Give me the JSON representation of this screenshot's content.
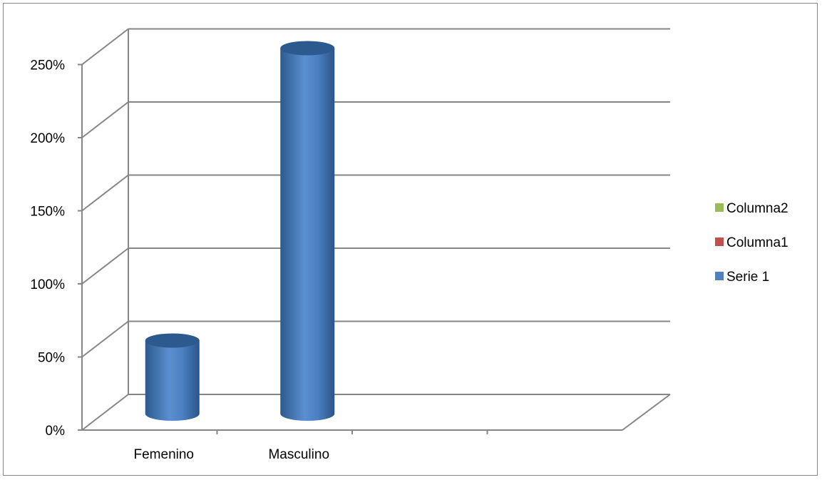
{
  "chart_data": {
    "type": "bar",
    "style": "3d-cylinder",
    "categories": [
      "Femenino",
      "Masculino",
      "",
      ""
    ],
    "series": [
      {
        "name": "Serie 1",
        "values": [
          0.5,
          2.5,
          null,
          null
        ],
        "color": "#4F81BD"
      },
      {
        "name": "Columna1",
        "values": [
          null,
          null,
          null,
          null
        ],
        "color": "#C0504D"
      },
      {
        "name": "Columna2",
        "values": [
          null,
          null,
          null,
          null
        ],
        "color": "#9BBB59"
      }
    ],
    "y_ticks": [
      {
        "value": 0,
        "label": "0%"
      },
      {
        "value": 0.5,
        "label": "50%"
      },
      {
        "value": 1,
        "label": "100%"
      },
      {
        "value": 1.5,
        "label": "150%"
      },
      {
        "value": 2,
        "label": "200%"
      },
      {
        "value": 2.5,
        "label": "250%"
      }
    ],
    "ylim": [
      0,
      2.5
    ],
    "grid": true,
    "legend": {
      "position": "right",
      "order": [
        "Columna2",
        "Columna1",
        "Serie 1"
      ]
    },
    "colors": {
      "gridline": "#868686",
      "bar_light": "#6A9AD6",
      "bar_dark": "#2D5A8E"
    }
  }
}
